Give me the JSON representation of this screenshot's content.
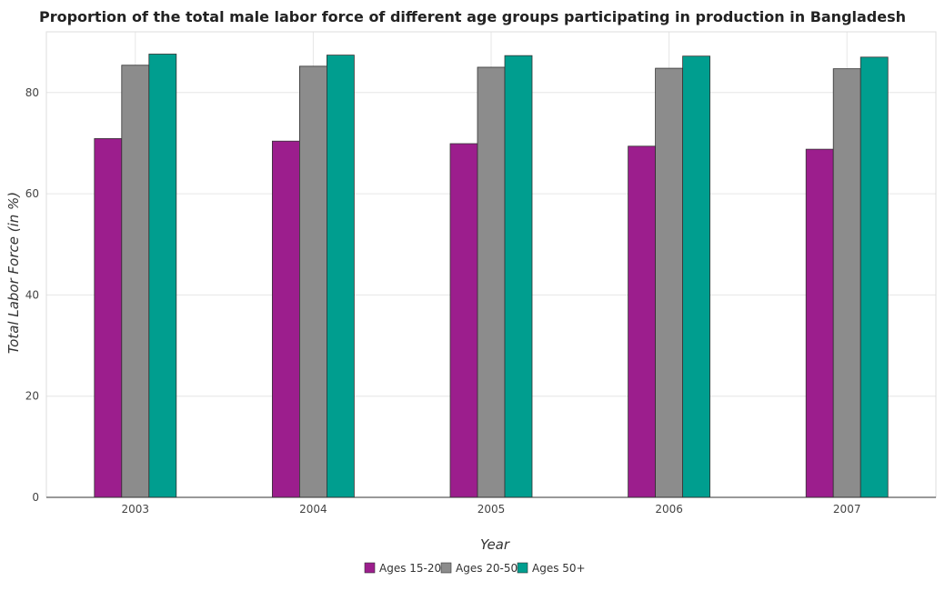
{
  "chart_data": {
    "type": "bar",
    "title": "Proportion of the total male labor force of different age groups participating in production in Bangladesh",
    "xlabel": "Year",
    "ylabel": "Total Labor Force (in %)",
    "categories": [
      "2003",
      "2004",
      "2005",
      "2006",
      "2007"
    ],
    "ylim": [
      0,
      92
    ],
    "yticks": [
      0,
      20,
      40,
      60,
      80
    ],
    "grid": true,
    "legend_position": "bottom-center",
    "series": [
      {
        "name": "Ages 15-20",
        "color": "#9c1e8d",
        "values": [
          70.9,
          70.4,
          69.9,
          69.4,
          68.8
        ]
      },
      {
        "name": "Ages 20-50",
        "color": "#8c8c8c",
        "values": [
          85.4,
          85.2,
          85.0,
          84.8,
          84.7
        ]
      },
      {
        "name": "Ages 50+",
        "color": "#009e8f",
        "values": [
          87.6,
          87.4,
          87.3,
          87.2,
          87.0
        ]
      }
    ]
  }
}
